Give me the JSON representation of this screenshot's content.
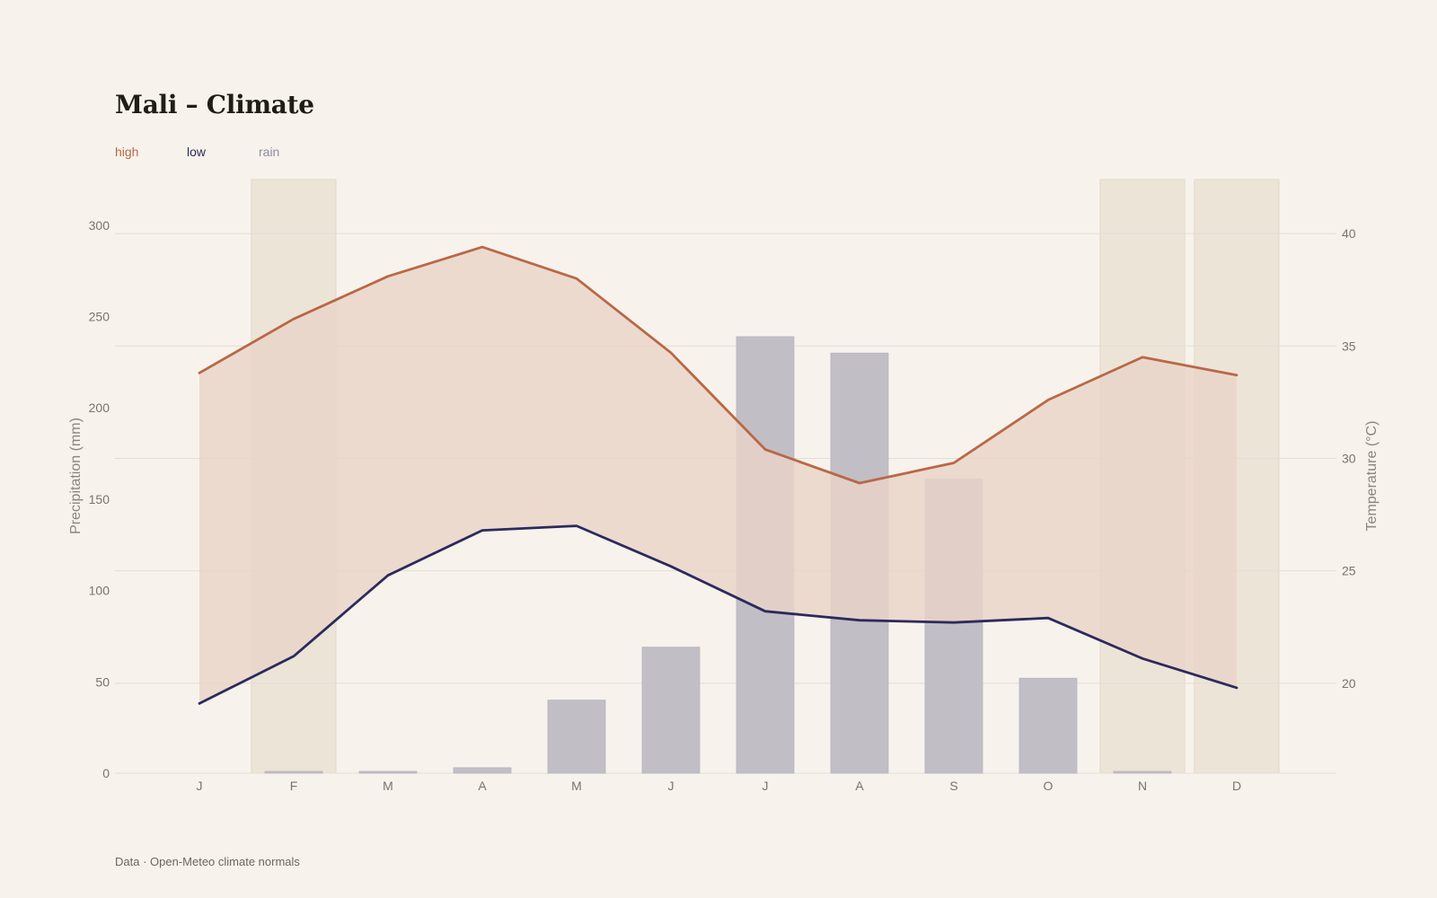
{
  "title": "Mali – Climate",
  "legend": [
    {
      "key": "high",
      "label": "high",
      "color": "#b96846"
    },
    {
      "key": "low",
      "label": "low",
      "color": "#2c2a5c"
    },
    {
      "key": "rain",
      "label": "rain",
      "color": "#8e8ca4"
    }
  ],
  "source": "Data · Open-Meteo climate normals",
  "chart_data": {
    "type": "bar",
    "categories": [
      "J",
      "F",
      "M",
      "A",
      "M",
      "J",
      "J",
      "A",
      "S",
      "O",
      "N",
      "D"
    ],
    "highlighted_months": [
      1,
      10,
      11
    ],
    "series": [
      {
        "name": "rain",
        "axis": "left",
        "type": "bar",
        "values": [
          0,
          1,
          1,
          3,
          40,
          69,
          239,
          230,
          161,
          52,
          1,
          0
        ]
      },
      {
        "name": "high",
        "axis": "right",
        "type": "line",
        "values": [
          33.8,
          36.2,
          38.1,
          39.4,
          38.0,
          34.7,
          30.4,
          28.9,
          29.8,
          32.6,
          34.5,
          33.7
        ]
      },
      {
        "name": "low",
        "axis": "right",
        "type": "line",
        "values": [
          19.1,
          21.2,
          24.8,
          26.8,
          27.0,
          25.2,
          23.2,
          22.8,
          22.7,
          22.9,
          21.1,
          19.8
        ]
      }
    ],
    "fill_between": [
      "low",
      "high"
    ],
    "ylabel_left": "Precipitation (mm)",
    "ylabel_right": "Temperature (°C)",
    "yticks_left": [
      0,
      50,
      100,
      150,
      200,
      250,
      300
    ],
    "yticks_right": [
      20,
      25,
      30,
      35,
      40
    ],
    "ylim_left": [
      0,
      325
    ],
    "ylim_right": [
      16,
      42.4
    ],
    "grid": true,
    "colors": {
      "high": "#b96846",
      "low": "#2c2a5c",
      "rain_bar": "#c2bec6",
      "band_fill": "#e9d4c8",
      "highlight_band": "#ede4d8",
      "grid": "#e3ddd4"
    }
  }
}
